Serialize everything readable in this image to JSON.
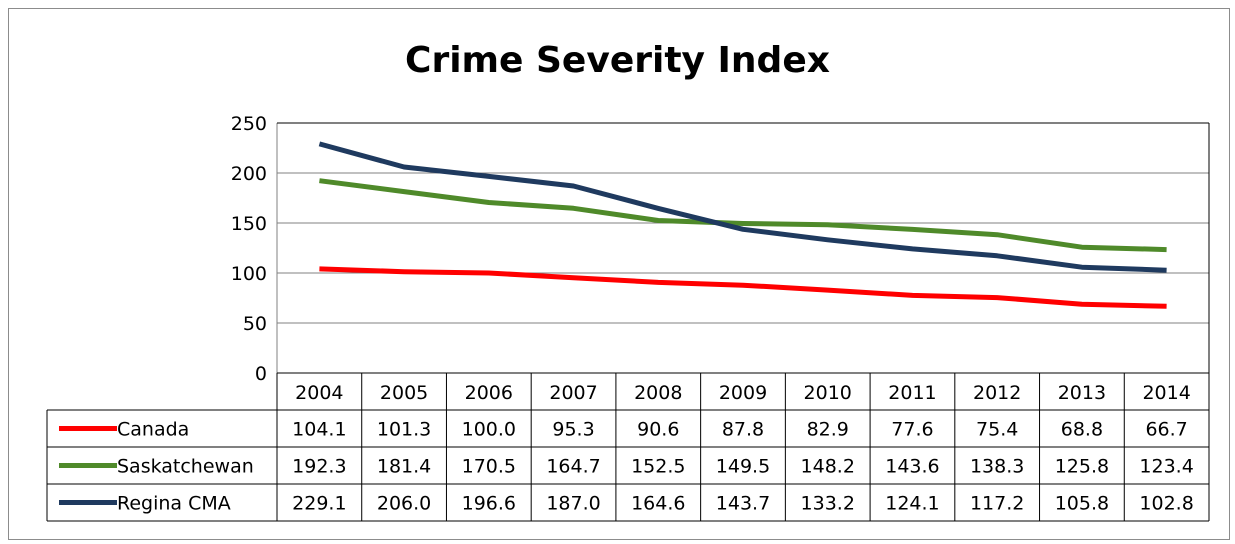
{
  "chart_data": {
    "type": "line",
    "title": "Crime Severity Index",
    "xlabel": "",
    "ylabel": "",
    "ylim": [
      0,
      250
    ],
    "yticks": [
      "0",
      "50",
      "100",
      "150",
      "200",
      "250"
    ],
    "categories": [
      "2004",
      "2005",
      "2006",
      "2007",
      "2008",
      "2009",
      "2010",
      "2011",
      "2012",
      "2013",
      "2014"
    ],
    "grid": true,
    "legend": "data-table",
    "series": [
      {
        "name": "Canada",
        "color": "#ff0000",
        "values": [
          104.1,
          101.3,
          100.0,
          95.3,
          90.6,
          87.8,
          82.9,
          77.6,
          75.4,
          68.8,
          66.7
        ],
        "labels": [
          "104.1",
          "101.3",
          "100.0",
          "95.3",
          "90.6",
          "87.8",
          "82.9",
          "77.6",
          "75.4",
          "68.8",
          "66.7"
        ]
      },
      {
        "name": "Saskatchewan",
        "color": "#4f8a2a",
        "values": [
          192.3,
          181.4,
          170.5,
          164.7,
          152.5,
          149.5,
          148.2,
          143.6,
          138.3,
          125.8,
          123.4
        ],
        "labels": [
          "192.3",
          "181.4",
          "170.5",
          "164.7",
          "152.5",
          "149.5",
          "148.2",
          "143.6",
          "138.3",
          "125.8",
          "123.4"
        ]
      },
      {
        "name": "Regina CMA",
        "color": "#1f3a5f",
        "values": [
          229.1,
          206.0,
          196.6,
          187.0,
          164.6,
          143.7,
          133.2,
          124.1,
          117.2,
          105.8,
          102.8
        ],
        "labels": [
          "229.1",
          "206.0",
          "196.6",
          "187.0",
          "164.6",
          "143.7",
          "133.2",
          "124.1",
          "117.2",
          "105.8",
          "102.8"
        ]
      }
    ]
  }
}
